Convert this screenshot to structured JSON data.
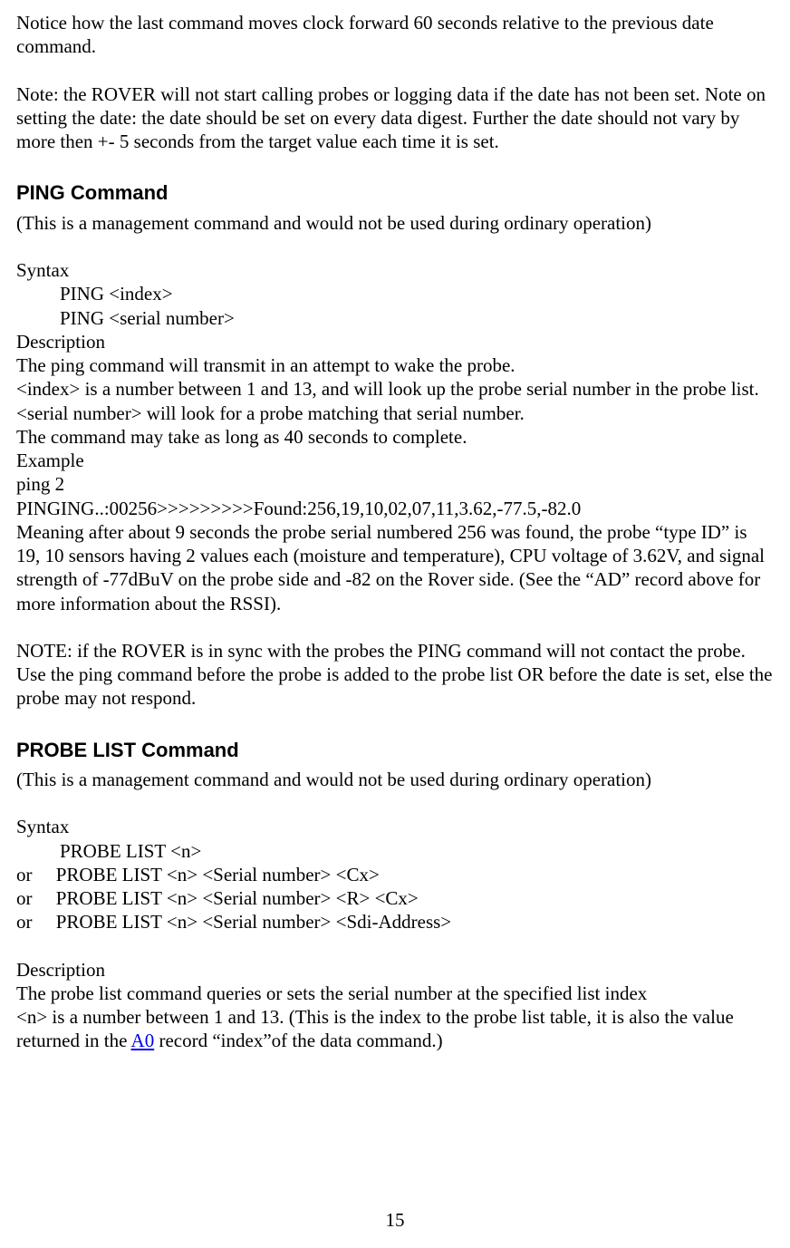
{
  "intro": {
    "p1": "Notice how the last command moves clock forward 60 seconds relative to the previous date command.",
    "p2": "Note: the ROVER will not start calling probes or logging data if the date has not been set. Note on setting the date: the date should be set on every data digest. Further the date should not vary by more then +- 5 seconds from the target value each time it is set."
  },
  "ping": {
    "heading": "PING Command",
    "subhead": "(This is a management command and would not be used during ordinary operation)",
    "syntax_label": "Syntax",
    "syntax1": "PING <index>",
    "syntax2": "PING <serial number>",
    "desc_label": "Description",
    "desc1": "The ping command will transmit in an attempt to wake the probe.",
    "desc2": "<index> is a number between 1 and 13, and will look up the probe serial number in the probe list.",
    "desc3": "<serial number> will look for a probe matching that serial number.",
    "desc4": "The command may take as long as 40 seconds to complete.",
    "example_label": "Example",
    "ex1": "ping 2",
    "ex2": "PINGING..:00256>>>>>>>>>Found:256,19,10,02,07,11,3.62,-77.5,-82.0",
    "ex3": "Meaning after about 9 seconds the probe serial numbered 256 was found, the probe “type ID” is 19, 10 sensors having 2 values each (moisture and temperature), CPU voltage of 3.62V, and signal strength of -77dBuV on the probe side and -82 on the Rover side. (See the “AD” record above for more information about the RSSI).",
    "note": "NOTE: if the ROVER is in sync with the probes the PING command will not contact the probe. Use the ping command before the probe is added to the probe list OR before the date is set, else the probe may not respond."
  },
  "probelist": {
    "heading": "PROBE LIST Command",
    "subhead": "(This is a management command and would not be used during ordinary operation)",
    "syntax_label": "Syntax",
    "syntax1": "PROBE LIST  <n>",
    "syntax2": "or     PROBE LIST  <n> <Serial number> <Cx>",
    "syntax3": "or     PROBE LIST  <n> <Serial number> <R> <Cx>",
    "syntax4": "or     PROBE LIST  <n> <Serial number> <Sdi-Address>",
    "desc_label": "Description",
    "desc1": "The probe list command queries or sets the serial number at the specified list index",
    "desc2a": "<n> is a number between 1 and 13. (This is the index to the probe list table, it is also the value returned in the ",
    "desc2link": "A0",
    "desc2b": " record “index”of the data command.)"
  },
  "page_number": "15"
}
